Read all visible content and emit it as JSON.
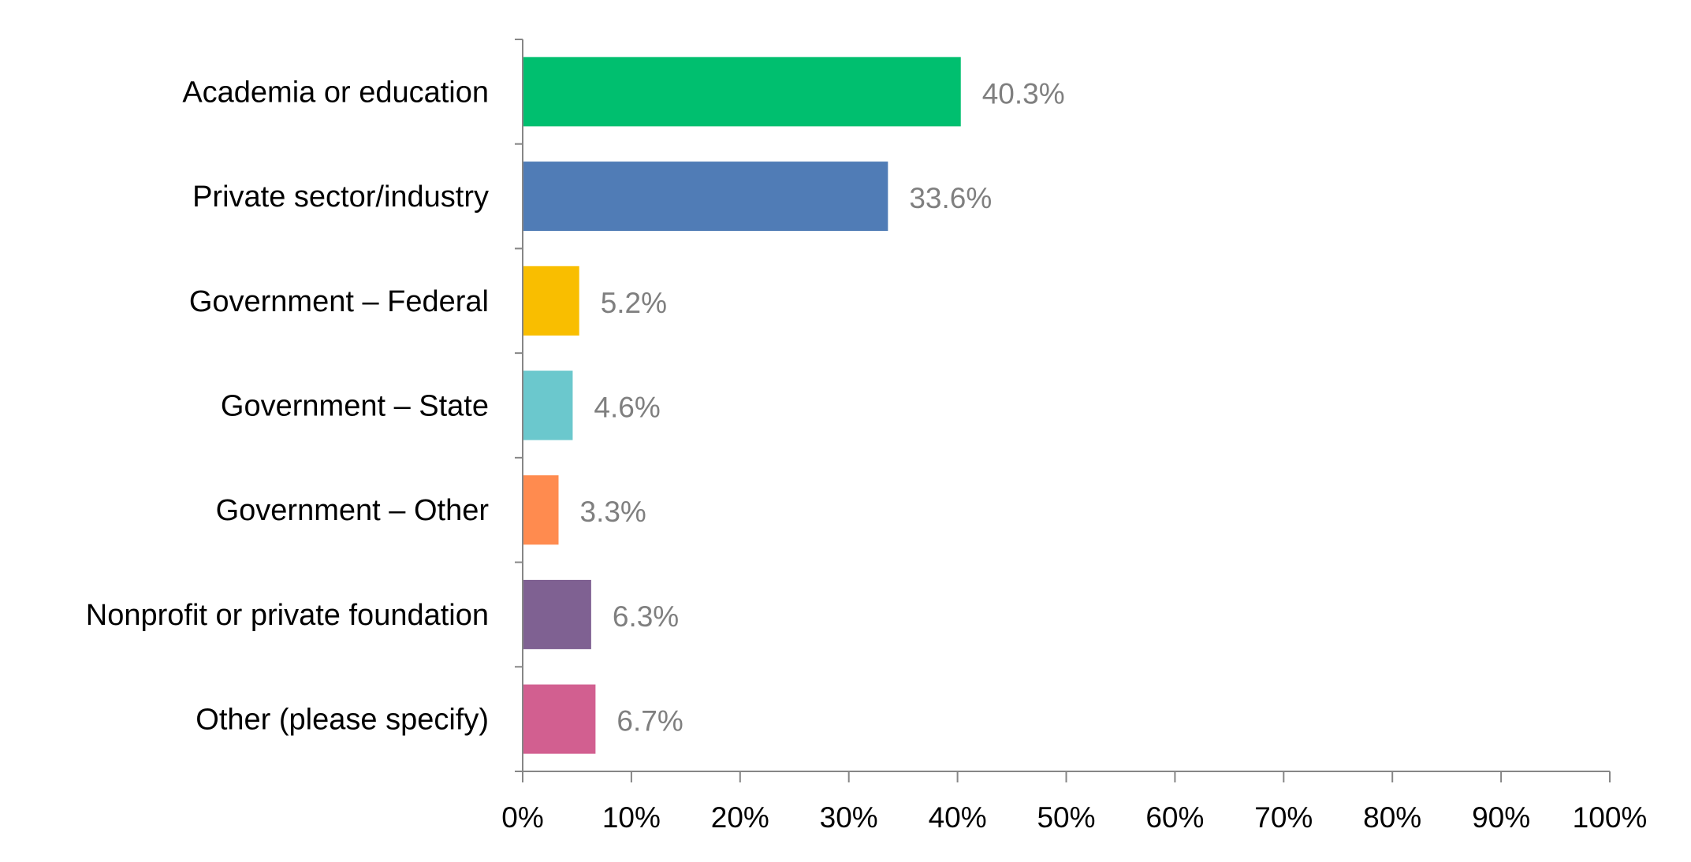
{
  "chart_data": {
    "type": "bar",
    "orientation": "horizontal",
    "title": "",
    "xlabel": "",
    "ylabel": "",
    "xlim": [
      0,
      100
    ],
    "grid": false,
    "categories": [
      "Academia or education",
      "Private sector/industry",
      "Government – Federal",
      "Government – State",
      "Government – Other",
      "Nonprofit or private foundation",
      "Other (please specify)"
    ],
    "values": [
      40.3,
      33.6,
      5.2,
      4.6,
      3.3,
      6.3,
      6.7
    ],
    "value_labels": [
      "40.3%",
      "33.6%",
      "5.2%",
      "4.6%",
      "3.3%",
      "6.3%",
      "6.7%"
    ],
    "colors": [
      "#00bf6f",
      "#507cb6",
      "#f9be00",
      "#6bc8cd",
      "#ff8b4f",
      "#7f6192",
      "#d25f90"
    ],
    "x_ticks": [
      "0%",
      "10%",
      "20%",
      "30%",
      "40%",
      "50%",
      "60%",
      "70%",
      "80%",
      "90%",
      "100%"
    ]
  }
}
